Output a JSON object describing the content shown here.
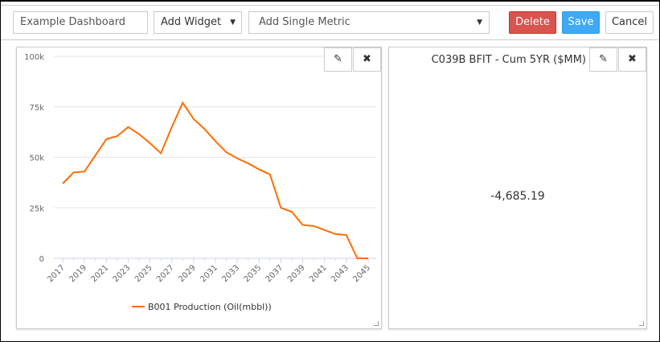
{
  "toolbar": {
    "dashboard_name": "Example Dashboard",
    "add_widget_label": "Add Widget",
    "add_metric_label": "Add Single Metric",
    "delete_label": "Delete",
    "save_label": "Save",
    "cancel_label": "Cancel"
  },
  "colors": {
    "delete": "#d9534f",
    "save": "#3fa9f5",
    "series": "#ff6d00"
  },
  "metric_widget": {
    "title": "C039B BFIT - Cum 5YR ($MM)",
    "value": "-4,685.19"
  },
  "icons": {
    "edit": "pencil-icon",
    "close": "close-icon"
  },
  "chart_data": {
    "type": "line",
    "x": [
      2017,
      2018,
      2019,
      2020,
      2021,
      2022,
      2023,
      2024,
      2025,
      2026,
      2027,
      2028,
      2029,
      2030,
      2031,
      2032,
      2033,
      2034,
      2035,
      2036,
      2037,
      2038,
      2039,
      2040,
      2041,
      2042,
      2043,
      2044,
      2045
    ],
    "series": [
      {
        "name": "B001 Production (Oil(mbbl))",
        "values": [
          37000,
          42500,
          43000,
          51000,
          59000,
          60500,
          65000,
          61500,
          57000,
          52000,
          65000,
          77000,
          69000,
          64000,
          58000,
          52500,
          49500,
          47000,
          44000,
          41500,
          25000,
          23000,
          16500,
          16000,
          14000,
          12000,
          11500,
          0,
          0
        ]
      }
    ],
    "x_tick_labels": [
      "2017",
      "2019",
      "2021",
      "2023",
      "2025",
      "2027",
      "2029",
      "2031",
      "2033",
      "2035",
      "2037",
      "2039",
      "2041",
      "2043",
      "2045"
    ],
    "y_tick_labels": [
      "0",
      "25k",
      "50k",
      "75k",
      "100k"
    ],
    "y_ticks": [
      0,
      25000,
      50000,
      75000,
      100000
    ],
    "ylim": [
      0,
      100000
    ],
    "grid": true,
    "legend_position": "bottom"
  }
}
